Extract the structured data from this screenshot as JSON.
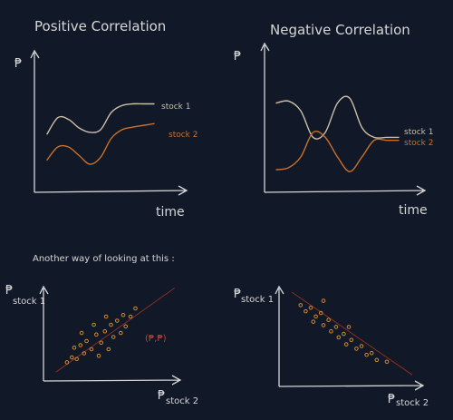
{
  "titles": {
    "positive": "Positive Correlation",
    "negative": "Negative Correlation"
  },
  "axes": {
    "price_symbol": "₱",
    "time": "time",
    "scatter_y": "stock 1",
    "scatter_x": "stock 2"
  },
  "legend": {
    "stock1": "stock 1",
    "stock2": "stock 2"
  },
  "subtitle": "Another way of looking at this :",
  "point_label": "(₱,₱)",
  "colors": {
    "background": "#111827",
    "ink": "#d6d6d6",
    "stock1": "#cdbfa8",
    "stock2": "#c9702a",
    "points": "#d08a33",
    "trendline": "#8b2e22"
  },
  "chart_data": [
    {
      "type": "line",
      "title": "Positive Correlation",
      "xlabel": "time",
      "ylabel": "₱",
      "series": [
        {
          "name": "stock 1",
          "x": [
            0,
            0.1,
            0.2,
            0.3,
            0.4,
            0.5,
            0.6,
            0.7,
            0.8,
            0.9,
            1.0
          ],
          "y": [
            0.55,
            0.74,
            0.72,
            0.62,
            0.57,
            0.6,
            0.8,
            0.88,
            0.9,
            0.9,
            0.9
          ]
        },
        {
          "name": "stock 2",
          "x": [
            0,
            0.1,
            0.2,
            0.3,
            0.4,
            0.5,
            0.6,
            0.7,
            0.8,
            0.9,
            1.0
          ],
          "y": [
            0.25,
            0.4,
            0.4,
            0.3,
            0.2,
            0.28,
            0.5,
            0.6,
            0.63,
            0.65,
            0.67
          ]
        }
      ]
    },
    {
      "type": "line",
      "title": "Negative Correlation",
      "xlabel": "time",
      "ylabel": "₱",
      "series": [
        {
          "name": "stock 1",
          "x": [
            0,
            0.1,
            0.2,
            0.3,
            0.4,
            0.5,
            0.6,
            0.7,
            0.8,
            0.9,
            1.0
          ],
          "y": [
            0.8,
            0.82,
            0.72,
            0.45,
            0.5,
            0.8,
            0.85,
            0.55,
            0.45,
            0.45,
            0.45
          ]
        },
        {
          "name": "stock 2",
          "x": [
            0,
            0.1,
            0.2,
            0.3,
            0.4,
            0.5,
            0.6,
            0.7,
            0.8,
            0.9,
            1.0
          ],
          "y": [
            0.12,
            0.14,
            0.25,
            0.5,
            0.45,
            0.25,
            0.1,
            0.25,
            0.42,
            0.42,
            0.42
          ]
        }
      ]
    },
    {
      "type": "scatter",
      "xlabel": "₱ stock 2",
      "ylabel": "₱ stock 1",
      "trend": "positive",
      "points": [
        {
          "x": 0.14,
          "y": 0.14
        },
        {
          "x": 0.18,
          "y": 0.2
        },
        {
          "x": 0.22,
          "y": 0.18
        },
        {
          "x": 0.25,
          "y": 0.35
        },
        {
          "x": 0.28,
          "y": 0.25
        },
        {
          "x": 0.3,
          "y": 0.4
        },
        {
          "x": 0.34,
          "y": 0.3
        },
        {
          "x": 0.38,
          "y": 0.48
        },
        {
          "x": 0.4,
          "y": 0.22
        },
        {
          "x": 0.42,
          "y": 0.38
        },
        {
          "x": 0.45,
          "y": 0.52
        },
        {
          "x": 0.48,
          "y": 0.3
        },
        {
          "x": 0.5,
          "y": 0.6
        },
        {
          "x": 0.52,
          "y": 0.45
        },
        {
          "x": 0.55,
          "y": 0.65
        },
        {
          "x": 0.58,
          "y": 0.5
        },
        {
          "x": 0.6,
          "y": 0.72
        },
        {
          "x": 0.62,
          "y": 0.58
        },
        {
          "x": 0.66,
          "y": 0.7
        },
        {
          "x": 0.7,
          "y": 0.8
        },
        {
          "x": 0.36,
          "y": 0.6
        },
        {
          "x": 0.26,
          "y": 0.5
        },
        {
          "x": 0.46,
          "y": 0.7
        },
        {
          "x": 0.2,
          "y": 0.32
        }
      ]
    },
    {
      "type": "scatter",
      "xlabel": "₱ stock 2",
      "ylabel": "₱ stock 1",
      "trend": "negative",
      "points": [
        {
          "x": 0.12,
          "y": 0.85
        },
        {
          "x": 0.16,
          "y": 0.78
        },
        {
          "x": 0.2,
          "y": 0.82
        },
        {
          "x": 0.24,
          "y": 0.72
        },
        {
          "x": 0.28,
          "y": 0.76
        },
        {
          "x": 0.3,
          "y": 0.62
        },
        {
          "x": 0.34,
          "y": 0.68
        },
        {
          "x": 0.36,
          "y": 0.55
        },
        {
          "x": 0.4,
          "y": 0.6
        },
        {
          "x": 0.42,
          "y": 0.48
        },
        {
          "x": 0.46,
          "y": 0.52
        },
        {
          "x": 0.48,
          "y": 0.4
        },
        {
          "x": 0.52,
          "y": 0.45
        },
        {
          "x": 0.56,
          "y": 0.35
        },
        {
          "x": 0.6,
          "y": 0.38
        },
        {
          "x": 0.64,
          "y": 0.28
        },
        {
          "x": 0.68,
          "y": 0.3
        },
        {
          "x": 0.72,
          "y": 0.22
        },
        {
          "x": 0.3,
          "y": 0.9
        },
        {
          "x": 0.5,
          "y": 0.6
        },
        {
          "x": 0.22,
          "y": 0.66
        },
        {
          "x": 0.8,
          "y": 0.2
        }
      ]
    }
  ]
}
